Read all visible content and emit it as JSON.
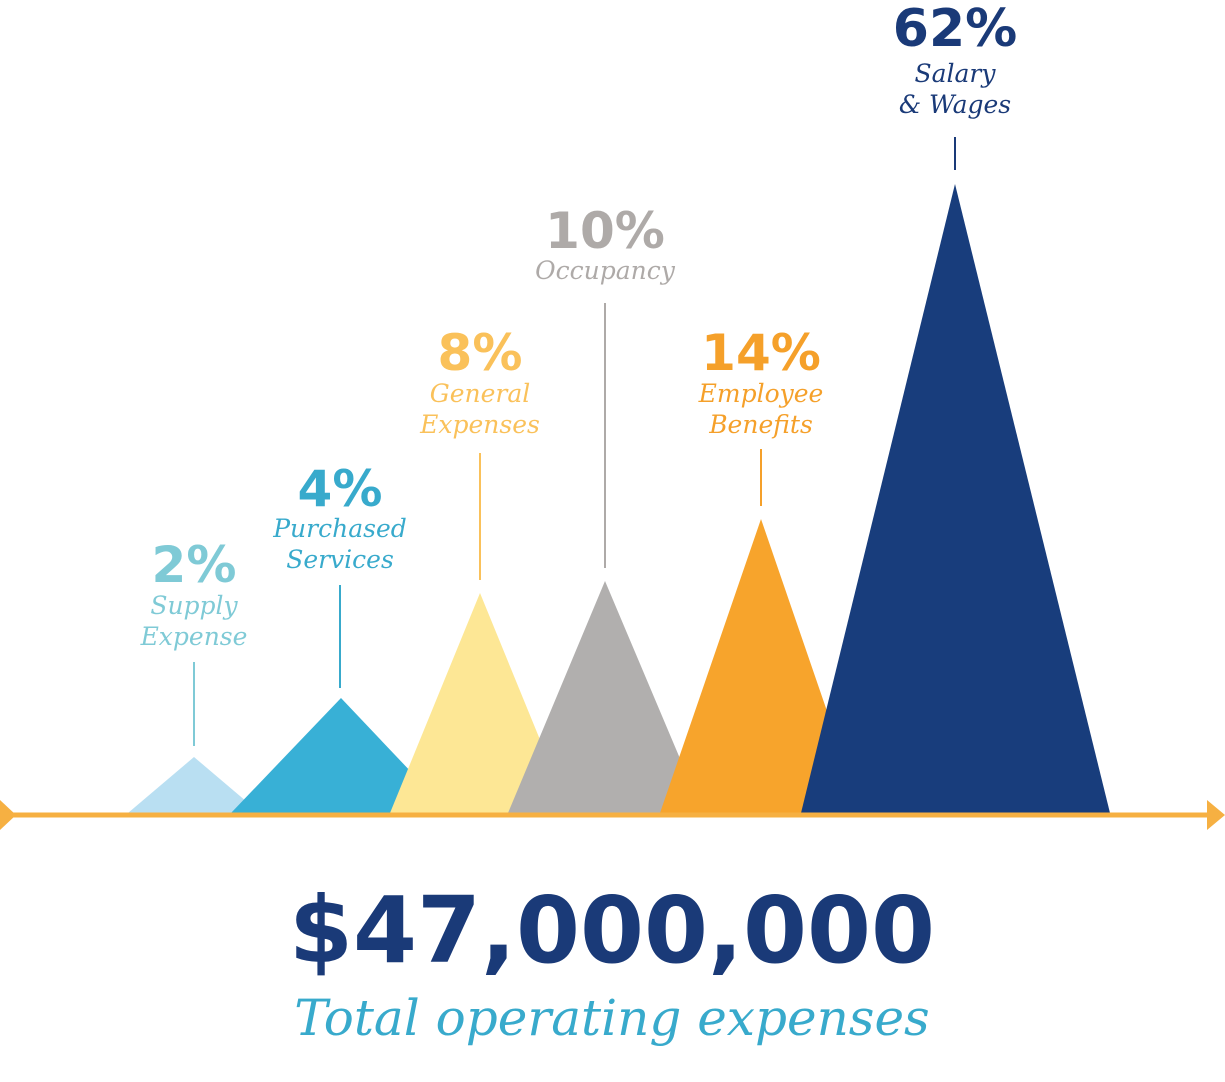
{
  "chart_data": {
    "type": "area",
    "x_axis": {
      "color": "#f6b042"
    },
    "series": [
      {
        "value": 2,
        "value_label": "2%",
        "label_lines": [
          "Supply",
          "Expense"
        ],
        "color": "#b9dff2",
        "text_color": "#7fcad6"
      },
      {
        "value": 4,
        "value_label": "4%",
        "label_lines": [
          "Purchased",
          "Services"
        ],
        "color": "#38b0d6",
        "text_color": "#38aacc"
      },
      {
        "value": 8,
        "value_label": "8%",
        "label_lines": [
          "General",
          "Expenses"
        ],
        "color": "#fde795",
        "text_color": "#fac15a"
      },
      {
        "value": 10,
        "value_label": "10%",
        "label_lines": [
          "Occupancy"
        ],
        "color": "#b1afae",
        "text_color": "#aeaaa8"
      },
      {
        "value": 14,
        "value_label": "14%",
        "label_lines": [
          "Employee",
          "Benefits"
        ],
        "color": "#f7a42c",
        "text_color": "#f5a02a"
      },
      {
        "value": 62,
        "value_label": "62%",
        "label_lines": [
          "Salary",
          "& Wages"
        ],
        "color": "#183d7c",
        "text_color": "#1a3a78"
      }
    ],
    "total": {
      "value": "$47,000,000",
      "label": "Total operating expenses",
      "value_color": "#1a3a78",
      "label_color": "#38aacc"
    }
  }
}
